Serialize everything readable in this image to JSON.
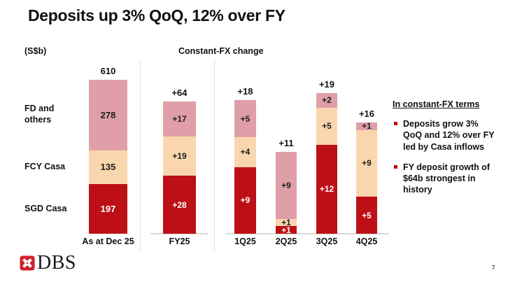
{
  "slide": {
    "title": "Deposits up 3% QoQ, 12% over FY",
    "units_label": "(S$b)",
    "section_label": "Constant-FX change",
    "page_number": "7"
  },
  "logo": {
    "text": "DBS",
    "mark": "dbs-cross-mark"
  },
  "row_labels": [
    {
      "id": "fd-others",
      "label": "FD and others"
    },
    {
      "id": "fcy-casa",
      "label": "FCY Casa"
    },
    {
      "id": "sgd-casa",
      "label": "SGD Casa"
    }
  ],
  "colors": {
    "sgd-casa": "#bd0f16",
    "fcy-casa": "#fad6ae",
    "fd-others": "#e09fa8",
    "segment_text_dark": "#1d1d1d",
    "segment_text_light": "#ffffff",
    "bullet": "#c00510",
    "logo_red": "#d0222c",
    "baseline": "#d9d9d9"
  },
  "chart_data": {
    "type": "bar",
    "stacked": true,
    "unit": "S$b",
    "segment_order_bottom_to_top": [
      "sgd-casa",
      "fcy-casa",
      "fd-others"
    ],
    "segment_names": {
      "sgd-casa": "SGD Casa",
      "fcy-casa": "FCY Casa",
      "fd-others": "FD and others"
    },
    "groups": [
      {
        "id": "stock",
        "description": "Deposit balances as at Dec 25"
      },
      {
        "id": "fy",
        "description": "Constant-FX change, full year"
      },
      {
        "id": "quarters",
        "description": "Constant-FX change by quarter"
      }
    ],
    "bars": [
      {
        "id": "dec25",
        "group": "stock",
        "x_label": "As at Dec 25",
        "total_label": "610",
        "segments": [
          {
            "key": "sgd-casa",
            "label": "197",
            "value": 197
          },
          {
            "key": "fcy-casa",
            "label": "135",
            "value": 135
          },
          {
            "key": "fd-others",
            "label": "278",
            "value": 278
          }
        ]
      },
      {
        "id": "fy25",
        "group": "fy",
        "x_label": "FY25",
        "total_label": "+64",
        "segments": [
          {
            "key": "sgd-casa",
            "label": "+28",
            "value": 28
          },
          {
            "key": "fcy-casa",
            "label": "+19",
            "value": 19
          },
          {
            "key": "fd-others",
            "label": "+17",
            "value": 17
          }
        ]
      },
      {
        "id": "q1",
        "group": "quarters",
        "x_label": "1Q25",
        "total_label": "+18",
        "segments": [
          {
            "key": "sgd-casa",
            "label": "+9",
            "value": 9
          },
          {
            "key": "fcy-casa",
            "label": "+4",
            "value": 4
          },
          {
            "key": "fd-others",
            "label": "+5",
            "value": 5
          }
        ]
      },
      {
        "id": "q2",
        "group": "quarters",
        "x_label": "2Q25",
        "total_label": "+11",
        "segments": [
          {
            "key": "sgd-casa",
            "label": "+1",
            "value": 1
          },
          {
            "key": "fcy-casa",
            "label": "+1",
            "value": 1
          },
          {
            "key": "fd-others",
            "label": "+9",
            "value": 9
          }
        ]
      },
      {
        "id": "q3",
        "group": "quarters",
        "x_label": "3Q25",
        "total_label": "+19",
        "segments": [
          {
            "key": "sgd-casa",
            "label": "+12",
            "value": 12
          },
          {
            "key": "fcy-casa",
            "label": "+5",
            "value": 5
          },
          {
            "key": "fd-others",
            "label": "+2",
            "value": 2
          }
        ]
      },
      {
        "id": "q4",
        "group": "quarters",
        "x_label": "4Q25",
        "total_label": "+16",
        "segments": [
          {
            "key": "sgd-casa",
            "label": "+5",
            "value": 5
          },
          {
            "key": "fcy-casa",
            "label": "+9",
            "value": 9
          },
          {
            "key": "fd-others",
            "label": "+1",
            "value": 1
          }
        ]
      }
    ]
  },
  "side_panel": {
    "heading": "In constant-FX terms",
    "bullets": [
      {
        "text": "Deposits grow 3% QoQ and 12% over FY led by Casa inflows"
      },
      {
        "text": "FY deposit growth of $64b strongest in history"
      }
    ]
  }
}
